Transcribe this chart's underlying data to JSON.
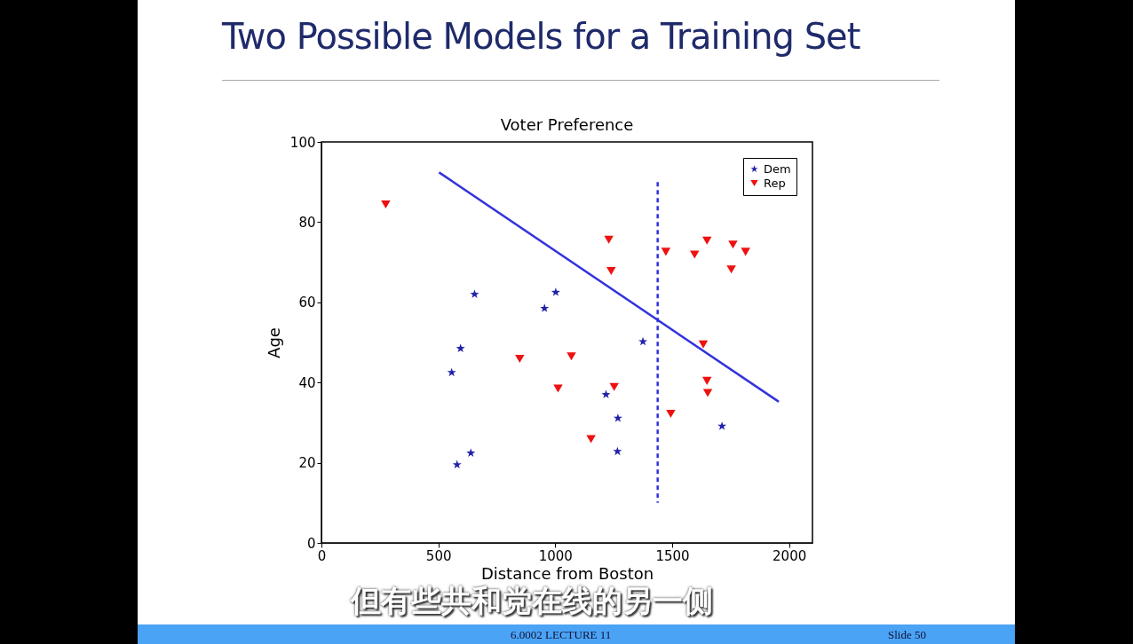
{
  "chart_data": {
    "type": "scatter",
    "title": "Two Possible Models for a Training Set",
    "subtitle": "Voter Preference",
    "xlabel": "Distance from Boston",
    "ylabel": "Age",
    "xlim": [
      0,
      2100
    ],
    "xticks": [
      0,
      500,
      1000,
      1500,
      2000
    ],
    "ylim": [
      0,
      100
    ],
    "yticks": [
      0,
      20,
      40,
      60,
      80,
      100
    ],
    "grid": false,
    "legend": "top right",
    "series": [
      {
        "name": "Dem",
        "marker": "star",
        "color": "#2222aa",
        "x": [
          595,
          557,
          655,
          954,
          1002,
          639,
          580,
          1375,
          1217,
          1268,
          1266,
          1713
        ],
        "values": [
          48.5,
          42.5,
          62,
          58.5,
          62.5,
          22.4,
          19.5,
          50.2,
          37,
          31.1,
          22.8,
          29.1
        ]
      },
      {
        "name": "Rep",
        "marker": "triangle",
        "color": "#ee1111",
        "x": [
          275,
          848,
          1012,
          1069,
          1229,
          1239,
          1252,
          1153,
          1473,
          1596,
          1649,
          1760,
          1814,
          1753,
          1633,
          1649,
          1652,
          1494
        ],
        "values": [
          84.4,
          45.9,
          38.5,
          46.5,
          75.6,
          67.8,
          38.9,
          25.9,
          72.6,
          71.9,
          75.4,
          74.4,
          72.6,
          68.2,
          49.5,
          40.4,
          37.4,
          32.2
        ]
      },
      {
        "type": "line",
        "line_style": "solid",
        "color": "#3333dd",
        "x": [
          503,
          1956
        ],
        "values": [
          92.4,
          35.2
        ]
      },
      {
        "type": "line",
        "line_style": "dashed",
        "color": "#3333dd",
        "x": [
          1438,
          1438
        ],
        "values": [
          90,
          10
        ]
      }
    ],
    "annotations": [
      "但有些共和党在线的另一侧",
      "6.0002 LECTURE 11",
      "Slide 50"
    ]
  }
}
